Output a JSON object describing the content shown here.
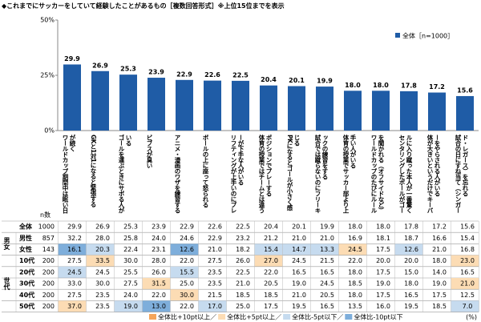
{
  "chart_data": {
    "type": "bar",
    "title": "◆これまでにサッカーをしていて経験したことがあるもの［複数回答形式］※上位15位までを表示",
    "categories": [
      "ワールドカップ期間中は眠い日が続く",
      "GKと1対1になると緊張する",
      "ゴールを運ぶときにサボる人がいる",
      "ビブスが臭い",
      "アニメ・漫画のワザを練習する",
      "ボールの上に座って怒られる",
      "リフティングが上手いのにプレーが下手な人がいる",
      "体育の授業ではチームとは違うポジションでプレーする",
      "PKになるとゴールが小さく感じる",
      "試合では蹴らないのにフリーキックの練習をする",
      "体育の授業でサッカー部より上手い人がいる",
      "ワールドカップのたびにルールを聞かれる（オフサイドなど）",
      "センタリングしたボールがゴールに入り蹴った本人が一番驚く",
      "体が大きいというだけでキーパーをやらされる人がいる",
      "試合の日にすね当て（シンガード・レガース）を忘れる"
    ],
    "series": [
      {
        "name": "全体［n=1000］",
        "color": "#1f5ca6",
        "values": [
          29.9,
          26.9,
          25.3,
          23.9,
          22.9,
          22.6,
          22.5,
          20.4,
          20.1,
          19.9,
          18.0,
          18.0,
          17.8,
          17.2,
          15.6
        ],
        "value_labels": [
          "29.9",
          "26.9",
          "25.3",
          "23.9",
          "22.9",
          "22.6",
          "22.5",
          "20.4",
          "20.1",
          "19.9",
          "18.0",
          "18.0",
          "17.8",
          "17.2",
          "15.6"
        ]
      }
    ],
    "ylim": [
      0,
      50
    ],
    "yticks": [
      {
        "value": 0,
        "label": "0%"
      },
      {
        "value": 25,
        "label": "25%"
      },
      {
        "value": 50,
        "label": "50%"
      }
    ],
    "legend": "top-right"
  },
  "table": {
    "n_header": "n数",
    "unit": "(%)",
    "legend": [
      {
        "label": "全体比+10pt以上／",
        "color": "#f5a55a"
      },
      {
        "label": "全体比+5pt以上／",
        "color": "#fcdcb4"
      },
      {
        "label": "全体比-5pt以下／",
        "color": "#c6dbef"
      },
      {
        "label": "全体比-10pt以下",
        "color": "#7eaedb"
      }
    ],
    "overall": {
      "label": "全体",
      "n": 1000,
      "values": [
        "29.9",
        "26.9",
        "25.3",
        "23.9",
        "22.9",
        "22.6",
        "22.5",
        "20.4",
        "20.1",
        "19.9",
        "18.0",
        "18.0",
        "17.8",
        "17.2",
        "15.6"
      ]
    },
    "groups": [
      {
        "label": "男女",
        "rows": [
          {
            "label": "男性",
            "n": 857,
            "values": [
              "32.2",
              "28.0",
              "25.8",
              "24.0",
              "24.6",
              "22.9",
              "23.2",
              "21.2",
              "21.0",
              "21.0",
              "16.9",
              "18.1",
              "18.7",
              "16.6",
              "15.4"
            ],
            "highlight": [
              null,
              null,
              null,
              null,
              null,
              null,
              null,
              null,
              null,
              null,
              null,
              null,
              null,
              null,
              null
            ]
          },
          {
            "label": "女性",
            "n": 143,
            "values": [
              "16.1",
              "20.3",
              "22.4",
              "23.1",
              "12.6",
              "21.0",
              "18.2",
              "15.4",
              "14.7",
              "13.3",
              "24.5",
              "17.5",
              "12.6",
              "21.0",
              "16.8"
            ],
            "highlight": [
              3,
              2,
              null,
              null,
              3,
              null,
              null,
              2,
              2,
              2,
              1,
              null,
              2,
              null,
              null
            ]
          }
        ]
      },
      {
        "label": "世代",
        "rows": [
          {
            "label": "10代",
            "n": 200,
            "values": [
              "27.5",
              "33.5",
              "30.0",
              "28.0",
              "22.0",
              "27.5",
              "26.0",
              "27.0",
              "24.5",
              "21.5",
              "22.0",
              "20.0",
              "20.0",
              "18.0",
              "23.0"
            ],
            "highlight": [
              null,
              1,
              null,
              null,
              null,
              null,
              null,
              1,
              null,
              null,
              null,
              null,
              null,
              null,
              1
            ]
          },
          {
            "label": "20代",
            "n": 200,
            "values": [
              "24.5",
              "24.5",
              "25.5",
              "26.0",
              "15.5",
              "23.5",
              "22.5",
              "22.0",
              "16.5",
              "16.5",
              "18.0",
              "17.5",
              "15.0",
              "14.0",
              "16.5"
            ],
            "highlight": [
              2,
              null,
              null,
              null,
              2,
              null,
              null,
              null,
              null,
              null,
              null,
              null,
              null,
              null,
              null
            ]
          },
          {
            "label": "30代",
            "n": 200,
            "values": [
              "33.0",
              "30.0",
              "27.5",
              "31.5",
              "25.0",
              "23.5",
              "21.0",
              "20.5",
              "19.0",
              "24.5",
              "18.5",
              "19.0",
              "18.0",
              "19.0",
              "21.0"
            ],
            "highlight": [
              null,
              null,
              null,
              1,
              null,
              null,
              null,
              null,
              null,
              null,
              null,
              null,
              null,
              null,
              1
            ]
          },
          {
            "label": "40代",
            "n": 200,
            "values": [
              "27.5",
              "23.5",
              "24.0",
              "22.0",
              "30.0",
              "21.5",
              "18.5",
              "18.5",
              "21.0",
              "20.5",
              "18.0",
              "17.5",
              "16.5",
              "17.5",
              "12.5"
            ],
            "highlight": [
              null,
              null,
              null,
              null,
              1,
              null,
              null,
              null,
              null,
              null,
              null,
              null,
              null,
              null,
              null
            ]
          },
          {
            "label": "50代",
            "n": 200,
            "values": [
              "37.0",
              "23.5",
              "19.0",
              "13.0",
              "22.0",
              "17.0",
              "25.0",
              "17.5",
              "19.5",
              "16.5",
              "13.5",
              "16.0",
              "19.5",
              "18.5",
              "7.0"
            ],
            "highlight": [
              1,
              null,
              2,
              3,
              null,
              2,
              null,
              null,
              null,
              null,
              null,
              null,
              null,
              null,
              2
            ]
          }
        ]
      }
    ]
  }
}
